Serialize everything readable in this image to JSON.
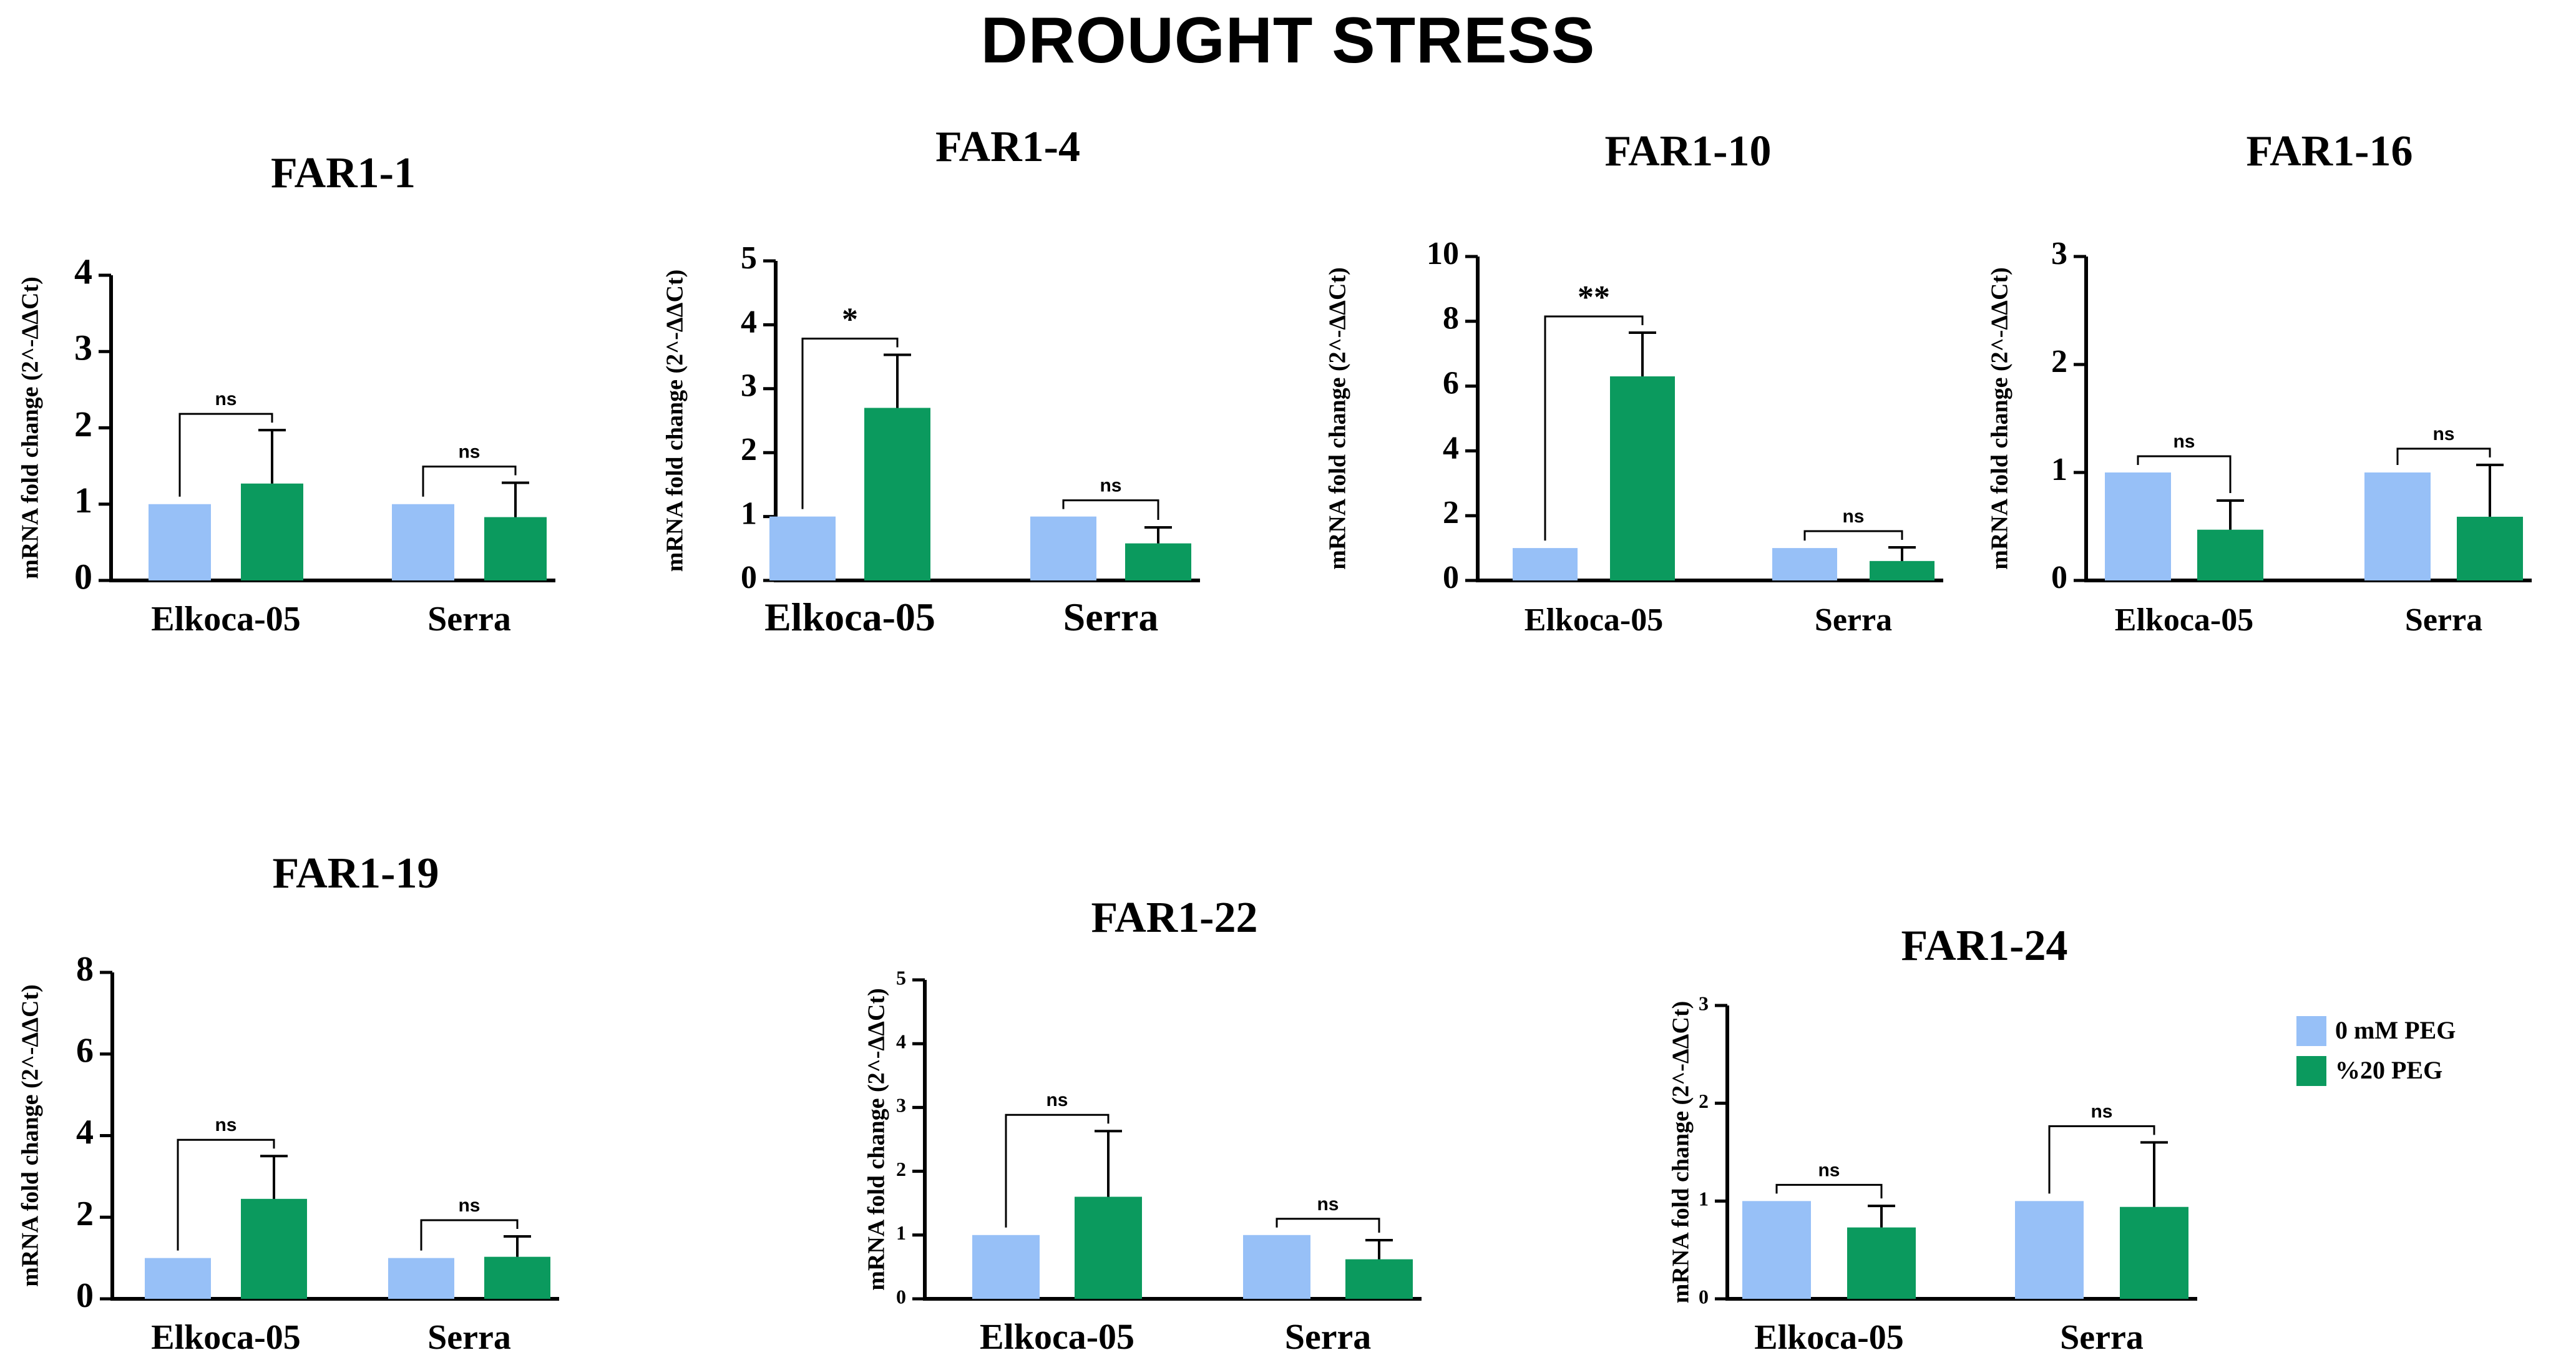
{
  "figure_title": "DROUGHT STRESS",
  "legend": {
    "entries": [
      {
        "label": "0 mM PEG",
        "color": "#97c0f7"
      },
      {
        "label": "%20 PEG",
        "color": "#0b9a5e"
      }
    ]
  },
  "chart_data": [
    {
      "type": "bar",
      "title": "FAR1-1",
      "ylabel": "mRNA fold change (2^-ΔΔCt)",
      "categories": [
        "Elkoca-05",
        "Serra"
      ],
      "ylim": [
        0,
        4
      ],
      "yticks": [
        0,
        1,
        2,
        3,
        4
      ],
      "series": [
        {
          "name": "0 mM PEG",
          "values": [
            1.0,
            1.0
          ],
          "errors": [
            0,
            0
          ]
        },
        {
          "name": "%20 PEG",
          "values": [
            1.27,
            0.83
          ],
          "errors": [
            0.7,
            0.45
          ]
        }
      ],
      "significance": [
        "ns",
        "ns"
      ]
    },
    {
      "type": "bar",
      "title": "FAR1-4",
      "ylabel": "mRNA fold change (2^-ΔΔCt)",
      "categories": [
        "Elkoca-05",
        "Serra"
      ],
      "ylim": [
        0,
        5
      ],
      "yticks": [
        0,
        1,
        2,
        3,
        4,
        5
      ],
      "series": [
        {
          "name": "0 mM PEG",
          "values": [
            1.0,
            1.0
          ],
          "errors": [
            0,
            0
          ]
        },
        {
          "name": "%20 PEG",
          "values": [
            2.7,
            0.58
          ],
          "errors": [
            0.83,
            0.25
          ]
        }
      ],
      "significance": [
        "*",
        "ns"
      ]
    },
    {
      "type": "bar",
      "title": "FAR1-10",
      "ylabel": "mRNA fold change (2^-ΔΔCt)",
      "categories": [
        "Elkoca-05",
        "Serra"
      ],
      "ylim": [
        0,
        10
      ],
      "yticks": [
        0,
        2,
        4,
        6,
        8,
        10
      ],
      "series": [
        {
          "name": "0 mM PEG",
          "values": [
            1.0,
            1.0
          ],
          "errors": [
            0,
            0
          ]
        },
        {
          "name": "%20 PEG",
          "values": [
            6.3,
            0.6
          ],
          "errors": [
            1.35,
            0.42
          ]
        }
      ],
      "significance": [
        "**",
        "ns"
      ]
    },
    {
      "type": "bar",
      "title": "FAR1-16",
      "ylabel": "mRNA fold change (2^-ΔΔCt)",
      "categories": [
        "Elkoca-05",
        "Serra"
      ],
      "ylim": [
        0,
        3
      ],
      "yticks": [
        0,
        1,
        2,
        3
      ],
      "series": [
        {
          "name": "0 mM PEG",
          "values": [
            1.0,
            1.0
          ],
          "errors": [
            0,
            0
          ]
        },
        {
          "name": "%20 PEG",
          "values": [
            0.47,
            0.59
          ],
          "errors": [
            0.27,
            0.48
          ]
        }
      ],
      "significance": [
        "ns",
        "ns"
      ]
    },
    {
      "type": "bar",
      "title": "FAR1-19",
      "ylabel": "mRNA fold change (2^-ΔΔCt)",
      "categories": [
        "Elkoca-05",
        "Serra"
      ],
      "ylim": [
        0,
        8
      ],
      "yticks": [
        0,
        2,
        4,
        6,
        8
      ],
      "series": [
        {
          "name": "0 mM PEG",
          "values": [
            1.0,
            1.0
          ],
          "errors": [
            0,
            0
          ]
        },
        {
          "name": "%20 PEG",
          "values": [
            2.45,
            1.03
          ],
          "errors": [
            1.05,
            0.5
          ]
        }
      ],
      "significance": [
        "ns",
        "ns"
      ]
    },
    {
      "type": "bar",
      "title": "FAR1-22",
      "ylabel": "mRNA fold change (2^-ΔΔCt)",
      "categories": [
        "Elkoca-05",
        "Serra"
      ],
      "ylim": [
        0,
        5
      ],
      "yticks": [
        0,
        1,
        2,
        3,
        4,
        5
      ],
      "series": [
        {
          "name": "0 mM PEG",
          "values": [
            1.0,
            1.0
          ],
          "errors": [
            0,
            0
          ]
        },
        {
          "name": "%20 PEG",
          "values": [
            1.6,
            0.62
          ],
          "errors": [
            1.03,
            0.3
          ]
        }
      ],
      "significance": [
        "ns",
        "ns"
      ]
    },
    {
      "type": "bar",
      "title": "FAR1-24",
      "ylabel": "mRNA fold change (2^-ΔΔCt)",
      "categories": [
        "Elkoca-05",
        "Serra"
      ],
      "ylim": [
        0,
        3
      ],
      "yticks": [
        0,
        1,
        2,
        3
      ],
      "series": [
        {
          "name": "0 mM PEG",
          "values": [
            1.0,
            1.0
          ],
          "errors": [
            0,
            0
          ]
        },
        {
          "name": "%20 PEG",
          "values": [
            0.73,
            0.94
          ],
          "errors": [
            0.22,
            0.66
          ]
        }
      ],
      "significance": [
        "ns",
        "ns"
      ]
    }
  ]
}
